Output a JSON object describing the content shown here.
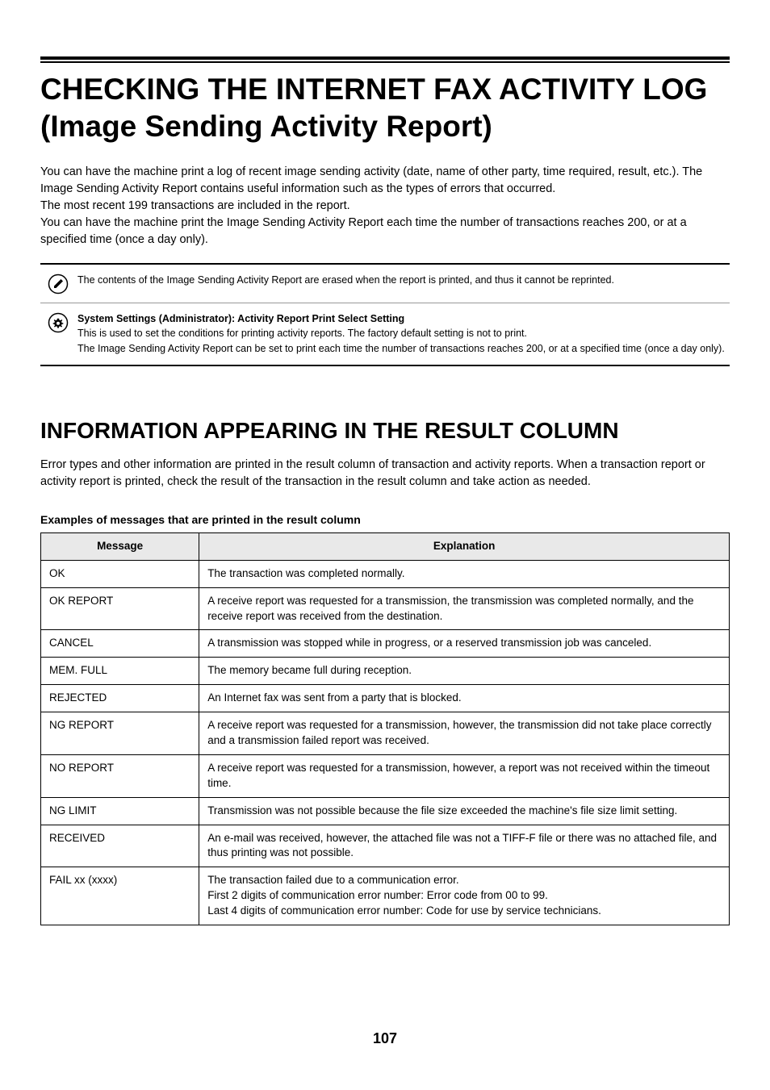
{
  "heading": "CHECKING THE INTERNET FAX ACTIVITY LOG (Image Sending Activity Report)",
  "intro": "You can have the machine print a log of recent image sending activity (date, name of other party, time required, result, etc.). The Image Sending Activity Report contains useful information such as the types of errors that occurred.\nThe most recent 199 transactions are included in the report.\nYou can have the machine print the Image Sending Activity Report each time the number of transactions reaches 200, or at a specified time (once a day only).",
  "notes": [
    {
      "icon": "pencil-circle-icon",
      "lines": [
        {
          "text": "The contents of the Image Sending Activity Report are erased when the report is printed, and thus it cannot be reprinted.",
          "bold": false
        }
      ]
    },
    {
      "icon": "gear-circle-icon",
      "lines": [
        {
          "text": "System Settings (Administrator): Activity Report Print Select Setting",
          "bold": true
        },
        {
          "text": "This is used to set the conditions for printing activity reports. The factory default setting is not to print.",
          "bold": false
        },
        {
          "text": "The Image Sending Activity Report can be set to print each time the number of transactions reaches 200, or at a specified time (once a day only).",
          "bold": false
        }
      ]
    }
  ],
  "section_heading": "INFORMATION APPEARING IN THE RESULT COLUMN",
  "section_intro": "Error types and other information are printed in the result column of transaction and activity reports. When a transaction report or activity report is printed, check the result of the transaction in the result column and take action as needed.",
  "table_caption": "Examples of messages that are printed in the result column",
  "table": {
    "headers": [
      "Message",
      "Explanation"
    ],
    "rows": [
      [
        "OK",
        "The transaction was completed normally."
      ],
      [
        "OK REPORT",
        "A receive report was requested for a transmission, the transmission was completed normally, and the receive report was received from the destination."
      ],
      [
        "CANCEL",
        "A transmission was stopped while in progress, or a reserved transmission job was canceled."
      ],
      [
        "MEM. FULL",
        "The memory became full during reception."
      ],
      [
        "REJECTED",
        "An Internet fax was sent from a party that is blocked."
      ],
      [
        "NG REPORT",
        "A receive report was requested for a transmission, however, the transmission did not take place correctly and a transmission failed report was received."
      ],
      [
        "NO REPORT",
        "A receive report was requested for a transmission, however, a report was not received within the timeout time."
      ],
      [
        "NG LIMIT",
        "Transmission was not possible because the file size exceeded the machine's file size limit setting."
      ],
      [
        "RECEIVED",
        "An e-mail was received, however, the attached file was not a TIFF-F file or there was no attached file, and thus printing was not possible."
      ],
      [
        "FAIL xx (xxxx)",
        "The transaction failed due to a communication error.\nFirst 2 digits of communication error number: Error code from 00 to 99.\nLast 4 digits of communication error number: Code for use by service technicians."
      ]
    ]
  },
  "page_number": "107",
  "icons": {
    "pencil-circle-icon": "pencil",
    "gear-circle-icon": "gear"
  }
}
